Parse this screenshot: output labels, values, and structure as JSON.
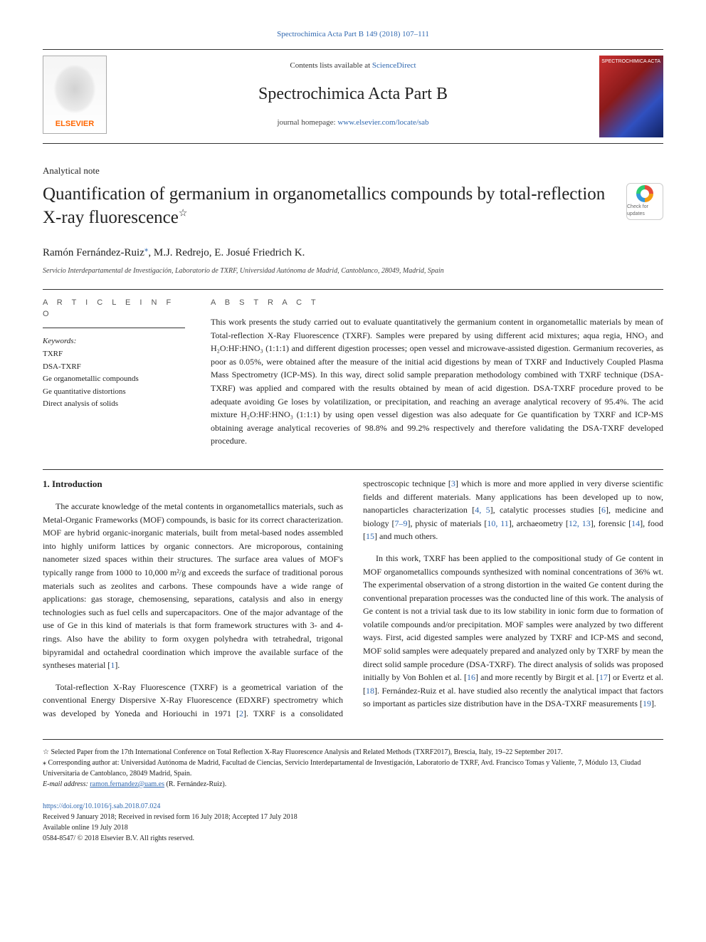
{
  "citation": "Spectrochimica Acta Part B 149 (2018) 107–111",
  "masthead": {
    "contents_prefix": "Contents lists available at ",
    "contents_link": "ScienceDirect",
    "journal_title": "Spectrochimica Acta Part B",
    "homepage_prefix": "journal homepage: ",
    "homepage_link": "www.elsevier.com/locate/sab",
    "publisher_logo_text": "ELSEVIER",
    "cover_label": "SPECTROCHIMICA ACTA"
  },
  "article": {
    "type": "Analytical note",
    "title_main": "Quantification of germanium in organometallics compounds by total-reflection X-ray fluorescence",
    "title_star": "☆",
    "crossmark_label": "Check for updates",
    "authors": "Ramón Fernández-Ruiz",
    "authors_rest": ", M.J. Redrejo, E. Josué Friedrich K.",
    "corr_mark": "⁎",
    "affiliation": "Servicio Interdepartamental de Investigación, Laboratorio de TXRF, Universidad Autónoma de Madrid, Cantoblanco, 28049, Madrid, Spain"
  },
  "info": {
    "head": "A R T I C L E  I N F O",
    "kw_label": "Keywords:",
    "keywords": [
      "TXRF",
      "DSA-TXRF",
      "Ge organometallic compounds",
      "Ge quantitative distortions",
      "Direct analysis of solids"
    ]
  },
  "abstract": {
    "head": "A B S T R A C T",
    "text": "This work presents the study carried out to evaluate quantitatively the germanium content in organometallic materials by mean of Total-reflection X-Ray Fluorescence (TXRF). Samples were prepared by using different acid mixtures; aqua regia, HNO₃ and H₂O:HF:HNO₃ (1:1:1) and different digestion processes; open vessel and microwave-assisted digestion. Germanium recoveries, as poor as 0.05%, were obtained after the measure of the initial acid digestions by mean of TXRF and Inductively Coupled Plasma Mass Spectrometry (ICP-MS). In this way, direct solid sample preparation methodology combined with TXRF technique (DSA-TXRF) was applied and compared with the results obtained by mean of acid digestion. DSA-TXRF procedure proved to be adequate avoiding Ge loses by volatilization, or precipitation, and reaching an average analytical recovery of 95.4%. The acid mixture H₂O:HF:HNO₃ (1:1:1) by using open vessel digestion was also adequate for Ge quantification by TXRF and ICP-MS obtaining average analytical recoveries of 98.8% and 99.2% respectively and therefore validating the DSA-TXRF developed procedure."
  },
  "intro": {
    "heading": "1. Introduction",
    "p1_a": "The accurate knowledge of the metal contents in organometallics materials, such as Metal-Organic Frameworks (MOF) compounds, is basic for its correct characterization. MOF are hybrid organic-inorganic materials, built from metal-based nodes assembled into highly uniform lattices by organic connectors. Are microporous, containing nanometer sized spaces within their structures. The surface area values of MOF's typically range from 1000 to 10,000 m²/g and exceeds the surface of traditional porous materials such as zeolites and carbons. These compounds have a wide range of applications: gas storage, chemosensing, separations, catalysis and also in energy technologies such as fuel cells and supercapacitors. One of the major advantage of the use of Ge in this kind of materials is that form framework structures with 3- and 4- rings. Also have the ability to form oxygen polyhedra with tetrahedral, trigonal bipyramidal and octahedral coordination which improve the available surface of the syntheses material [",
    "p1_r1": "1",
    "p1_b": "].",
    "p2_a": "Total-reflection X-Ray Fluorescence (TXRF) is a geometrical variation of the conventional Energy Dispersive X-Ray Fluorescence (EDXRF) spectrometry which was developed by Yoneda and Horiouchi in 1971 [",
    "p2_r2": "2",
    "p2_b": "]. TXRF is a consolidated spectroscopic technique [",
    "p2_r3": "3",
    "p2_c": "] which is more and more applied in very diverse scientific fields and different materials. Many applications has been developed up to now, nanoparticles characterization [",
    "p2_r45": "4, 5",
    "p2_d": "], catalytic processes studies [",
    "p2_r6": "6",
    "p2_e": "], medicine and biology [",
    "p2_r79": "7–9",
    "p2_f": "], physic of materials [",
    "p2_r1011": "10, 11",
    "p2_g": "], archaeometry [",
    "p2_r1213": "12, 13",
    "p2_h": "], forensic [",
    "p2_r14": "14",
    "p2_i": "], food [",
    "p2_r15": "15",
    "p2_j": "] and much others.",
    "p3_a": "In this work, TXRF has been applied to the compositional study of Ge content in MOF organometallics compounds synthesized with nominal concentrations of 36% wt. The experimental observation of a strong distortion in the waited Ge content during the conventional preparation processes was the conducted line of this work. The analysis of Ge content is not a trivial task due to its low stability in ionic form due to formation of volatile compounds and/or precipitation. MOF samples were analyzed by two different ways. First, acid digested samples were analyzed by TXRF and ICP-MS and second, MOF solid samples were adequately prepared and analyzed only by TXRF by mean the direct solid sample procedure (DSA-TXRF). The direct analysis of solids was proposed initially by Von Bohlen et al. [",
    "p3_r16": "16",
    "p3_b": "] and more recently by Birgit et al. [",
    "p3_r17": "17",
    "p3_c": "] or Evertz et al. [",
    "p3_r18": "18",
    "p3_d": "]. Fernández-Ruiz et al. have studied also recently the analytical impact that factors so important as particles size distribution have in the DSA-TXRF measurements [",
    "p3_r19": "19",
    "p3_e": "]."
  },
  "footnotes": {
    "star": "☆ Selected Paper from the 17th International Conference on Total Reflection X-Ray Fluorescence Analysis and Related Methods (TXRF2017), Brescia, Italy, 19–22 September 2017.",
    "corr": "⁎ Corresponding author at: Universidad Autónoma de Madrid, Facultad de Ciencias, Servicio Interdepartamental de Investigación, Laboratorio de TXRF, Avd. Francisco Tomas y Valiente, 7, Módulo 13, Ciudad Universitaria de Cantoblanco, 28049 Madrid, Spain.",
    "email_label": "E-mail address: ",
    "email": "ramon.fernandez@uam.es",
    "email_suffix": " (R. Fernández-Ruiz)."
  },
  "doi": {
    "link": "https://doi.org/10.1016/j.sab.2018.07.024",
    "received": "Received 9 January 2018; Received in revised form 16 July 2018; Accepted 17 July 2018",
    "online": "Available online 19 July 2018",
    "copyright": "0584-8547/ © 2018 Elsevier B.V. All rights reserved."
  },
  "colors": {
    "link": "#3068b0",
    "orange": "#ff6600",
    "text": "#222222",
    "rule": "#333333"
  }
}
